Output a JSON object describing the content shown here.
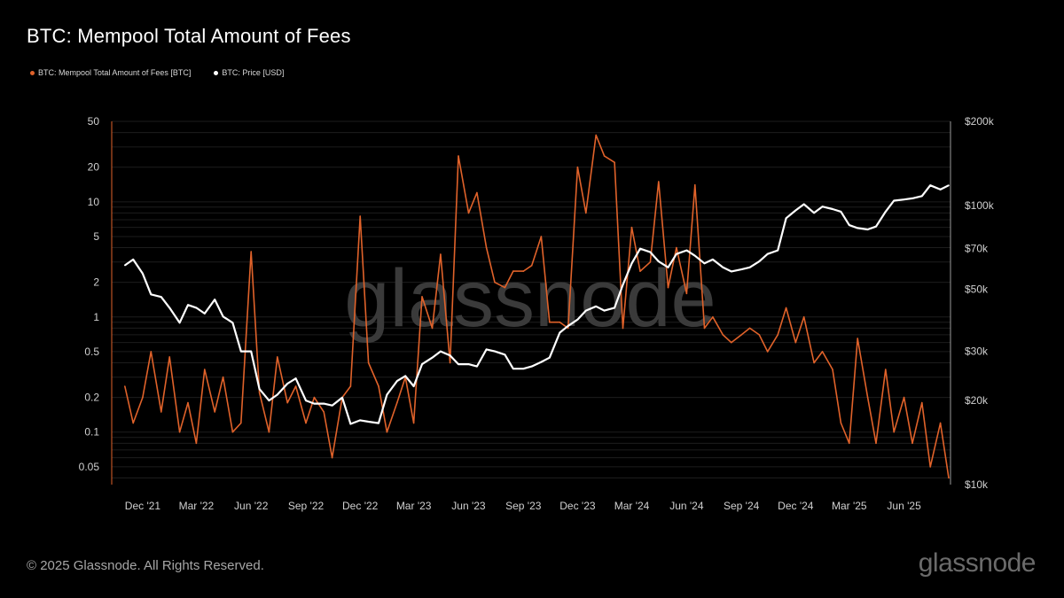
{
  "header": {
    "title": "BTC: Mempool Total Amount of Fees"
  },
  "legend": [
    {
      "label": "BTC: Mempool Total Amount of Fees [BTC]",
      "color": "#e0622a"
    },
    {
      "label": "BTC: Price [USD]",
      "color": "#ffffff"
    }
  ],
  "watermark": "glassnode",
  "footer": {
    "copyright": "© 2025 Glassnode. All Rights Reserved.",
    "logo": "glassnode"
  },
  "chart_data": {
    "type": "line",
    "title": "BTC: Mempool Total Amount of Fees",
    "x_ticks": [
      "Dec '21",
      "Mar '22",
      "Jun '22",
      "Sep '22",
      "Dec '22",
      "Mar '23",
      "Jun '23",
      "Sep '23",
      "Dec '23",
      "Mar '24",
      "Jun '24",
      "Sep '24",
      "Dec '24",
      "Mar '25",
      "Jun '25"
    ],
    "y_left": {
      "scale": "log",
      "ticks": [
        50,
        20,
        10,
        5,
        2,
        1,
        0.5,
        0.2,
        0.1,
        0.05
      ],
      "tick_labels": [
        "50",
        "20",
        "10",
        "5",
        "2",
        "1",
        "0.5",
        "0.2",
        "0.1",
        "0.05"
      ],
      "range": [
        0.035,
        50
      ]
    },
    "y_right": {
      "scale": "log",
      "ticks": [
        200000,
        100000,
        70000,
        50000,
        30000,
        20000,
        10000
      ],
      "tick_labels": [
        "$200k",
        "$100k",
        "$70k",
        "$50k",
        "$30k",
        "$20k",
        "$10k"
      ],
      "range": [
        10000,
        200000
      ]
    },
    "grid": true,
    "legend_position": "top-left",
    "series": [
      {
        "name": "BTC: Mempool Total Amount of Fees [BTC]",
        "color": "#e0622a",
        "axis": "left",
        "x": [
          "2021-11-01",
          "2021-11-15",
          "2021-12-01",
          "2021-12-15",
          "2022-01-01",
          "2022-01-15",
          "2022-02-01",
          "2022-02-15",
          "2022-03-01",
          "2022-03-15",
          "2022-04-01",
          "2022-04-15",
          "2022-05-01",
          "2022-05-15",
          "2022-06-01",
          "2022-06-15",
          "2022-07-01",
          "2022-07-15",
          "2022-08-01",
          "2022-08-15",
          "2022-09-01",
          "2022-09-15",
          "2022-10-01",
          "2022-10-15",
          "2022-11-01",
          "2022-11-15",
          "2022-12-01",
          "2022-12-15",
          "2023-01-01",
          "2023-01-15",
          "2023-02-01",
          "2023-02-15",
          "2023-03-01",
          "2023-03-15",
          "2023-04-01",
          "2023-04-15",
          "2023-05-01",
          "2023-05-15",
          "2023-06-01",
          "2023-06-15",
          "2023-07-01",
          "2023-07-15",
          "2023-08-01",
          "2023-08-15",
          "2023-09-01",
          "2023-09-15",
          "2023-10-01",
          "2023-10-15",
          "2023-11-01",
          "2023-11-15",
          "2023-12-01",
          "2023-12-15",
          "2024-01-01",
          "2024-01-15",
          "2024-02-01",
          "2024-02-15",
          "2024-03-01",
          "2024-03-15",
          "2024-04-01",
          "2024-04-15",
          "2024-05-01",
          "2024-05-15",
          "2024-06-01",
          "2024-06-15",
          "2024-07-01",
          "2024-07-15",
          "2024-08-01",
          "2024-08-15",
          "2024-09-01",
          "2024-09-15",
          "2024-10-01",
          "2024-10-15",
          "2024-11-01",
          "2024-11-15",
          "2024-12-01",
          "2024-12-15",
          "2025-01-01",
          "2025-01-15",
          "2025-02-01",
          "2025-02-15",
          "2025-03-01",
          "2025-03-15",
          "2025-04-01",
          "2025-04-15",
          "2025-05-01",
          "2025-05-15",
          "2025-06-01",
          "2025-06-15",
          "2025-07-01",
          "2025-07-15",
          "2025-08-01",
          "2025-08-15"
        ],
        "values": [
          0.25,
          0.12,
          0.2,
          0.5,
          0.15,
          0.45,
          0.1,
          0.18,
          0.08,
          0.35,
          0.15,
          0.3,
          0.1,
          0.12,
          3.7,
          0.22,
          0.1,
          0.45,
          0.18,
          0.25,
          0.12,
          0.2,
          0.15,
          0.06,
          0.2,
          0.25,
          7.5,
          0.4,
          0.25,
          0.1,
          0.18,
          0.3,
          0.12,
          1.5,
          0.8,
          3.5,
          0.4,
          25,
          8,
          12,
          4,
          2,
          1.8,
          2.5,
          2.5,
          2.8,
          5,
          0.9,
          0.9,
          0.8,
          20,
          8,
          38,
          25,
          22,
          0.8,
          6,
          2.5,
          3,
          15,
          1.8,
          4,
          1.6,
          14,
          0.8,
          1,
          0.7,
          0.6,
          0.7,
          0.8,
          0.7,
          0.5,
          0.7,
          1.2,
          0.6,
          1,
          0.4,
          0.5,
          0.35,
          0.12,
          0.08,
          0.65,
          0.2,
          0.08,
          0.35,
          0.1,
          0.2,
          0.08,
          0.18,
          0.05,
          0.12,
          0.04
        ]
      },
      {
        "name": "BTC: Price [USD]",
        "color": "#ffffff",
        "axis": "right",
        "x": [
          "2021-11-01",
          "2021-11-15",
          "2021-12-01",
          "2021-12-15",
          "2022-01-01",
          "2022-01-15",
          "2022-02-01",
          "2022-02-15",
          "2022-03-01",
          "2022-03-15",
          "2022-04-01",
          "2022-04-15",
          "2022-05-01",
          "2022-05-15",
          "2022-06-01",
          "2022-06-15",
          "2022-07-01",
          "2022-07-15",
          "2022-08-01",
          "2022-08-15",
          "2022-09-01",
          "2022-09-15",
          "2022-10-01",
          "2022-10-15",
          "2022-11-01",
          "2022-11-15",
          "2022-12-01",
          "2022-12-15",
          "2023-01-01",
          "2023-01-15",
          "2023-02-01",
          "2023-02-15",
          "2023-03-01",
          "2023-03-15",
          "2023-04-01",
          "2023-04-15",
          "2023-05-01",
          "2023-05-15",
          "2023-06-01",
          "2023-06-15",
          "2023-07-01",
          "2023-07-15",
          "2023-08-01",
          "2023-08-15",
          "2023-09-01",
          "2023-09-15",
          "2023-10-01",
          "2023-10-15",
          "2023-11-01",
          "2023-11-15",
          "2023-12-01",
          "2023-12-15",
          "2024-01-01",
          "2024-01-15",
          "2024-02-01",
          "2024-02-15",
          "2024-03-01",
          "2024-03-15",
          "2024-04-01",
          "2024-04-15",
          "2024-05-01",
          "2024-05-15",
          "2024-06-01",
          "2024-06-15",
          "2024-07-01",
          "2024-07-15",
          "2024-08-01",
          "2024-08-15",
          "2024-09-01",
          "2024-09-15",
          "2024-10-01",
          "2024-10-15",
          "2024-11-01",
          "2024-11-15",
          "2024-12-01",
          "2024-12-15",
          "2025-01-01",
          "2025-01-15",
          "2025-02-01",
          "2025-02-15",
          "2025-03-01",
          "2025-03-15",
          "2025-04-01",
          "2025-04-15",
          "2025-05-01",
          "2025-05-15",
          "2025-06-01",
          "2025-06-15",
          "2025-07-01",
          "2025-07-15",
          "2025-08-01",
          "2025-08-15"
        ],
        "values": [
          61000,
          64000,
          57000,
          48000,
          47000,
          43000,
          38000,
          44000,
          43000,
          41000,
          46000,
          40000,
          38000,
          30000,
          30000,
          22000,
          20000,
          21000,
          23000,
          24000,
          20000,
          19500,
          19500,
          19200,
          20500,
          16500,
          17000,
          16800,
          16600,
          21000,
          23500,
          24500,
          22500,
          27000,
          28500,
          30000,
          29000,
          27000,
          27000,
          26500,
          30500,
          30000,
          29200,
          26000,
          26000,
          26500,
          27500,
          28500,
          35000,
          37000,
          39000,
          42000,
          43500,
          42000,
          43000,
          52000,
          62000,
          70000,
          68000,
          63000,
          60000,
          67000,
          69000,
          66000,
          62000,
          64000,
          60000,
          58000,
          59000,
          60000,
          63000,
          67000,
          69000,
          90000,
          96000,
          101000,
          94000,
          99000,
          97000,
          95000,
          85000,
          83000,
          82000,
          84000,
          95000,
          104000,
          105000,
          106000,
          108000,
          118000,
          114000,
          118000
        ]
      }
    ]
  }
}
